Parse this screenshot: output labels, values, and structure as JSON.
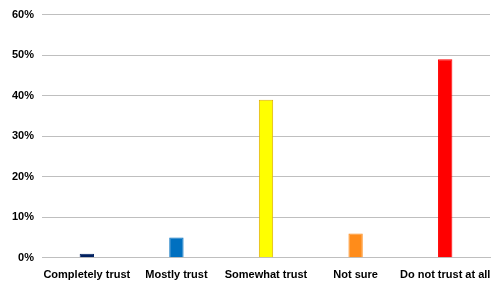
{
  "chart_data": {
    "type": "bar",
    "categories": [
      "Completely trust",
      "Mostly trust",
      "Somewhat trust",
      "Not sure",
      "Do not trust at all"
    ],
    "values": [
      1,
      5,
      39,
      6,
      49
    ],
    "colors": [
      "#002060",
      "#0070c0",
      "#ffff00",
      "#ff8c1a",
      "#ff0000"
    ],
    "ylim": [
      0,
      60
    ],
    "yticks": [
      {
        "value": 0,
        "label": "0%"
      },
      {
        "value": 10,
        "label": "10%"
      },
      {
        "value": 20,
        "label": "20%"
      },
      {
        "value": 30,
        "label": "30%"
      },
      {
        "value": 40,
        "label": "40%"
      },
      {
        "value": 50,
        "label": "50%"
      },
      {
        "value": 60,
        "label": "60%"
      }
    ],
    "grid": true
  }
}
